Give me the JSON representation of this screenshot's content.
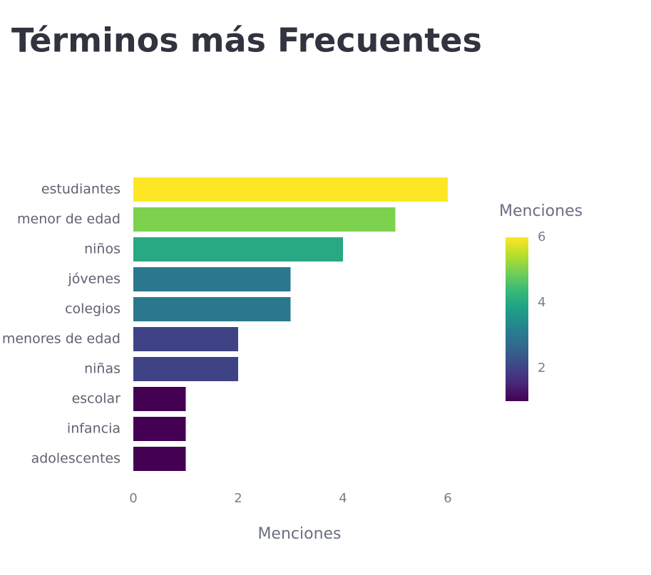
{
  "page_title": "Términos más Frecuentes",
  "chart_data": {
    "type": "bar",
    "orientation": "horizontal",
    "categories": [
      "estudiantes",
      "menor de edad",
      "niños",
      "jóvenes",
      "colegios",
      "menores de edad",
      "niñas",
      "escolar",
      "infancia",
      "adolescentes"
    ],
    "values": [
      6,
      5,
      4,
      3,
      3,
      2,
      2,
      1,
      1,
      1
    ],
    "xlabel": "Menciones",
    "xlim": [
      0,
      6
    ],
    "xticks": [
      0,
      2,
      4,
      6
    ],
    "colorscale": [
      "#440154",
      "#482878",
      "#3e4989",
      "#31688e",
      "#26828e",
      "#1f9e89",
      "#35b779",
      "#6ece58",
      "#b5de2b",
      "#fde725"
    ],
    "colorbar": {
      "title": "Menciones",
      "range": [
        1,
        6
      ],
      "ticks": [
        2,
        4,
        6
      ]
    }
  }
}
